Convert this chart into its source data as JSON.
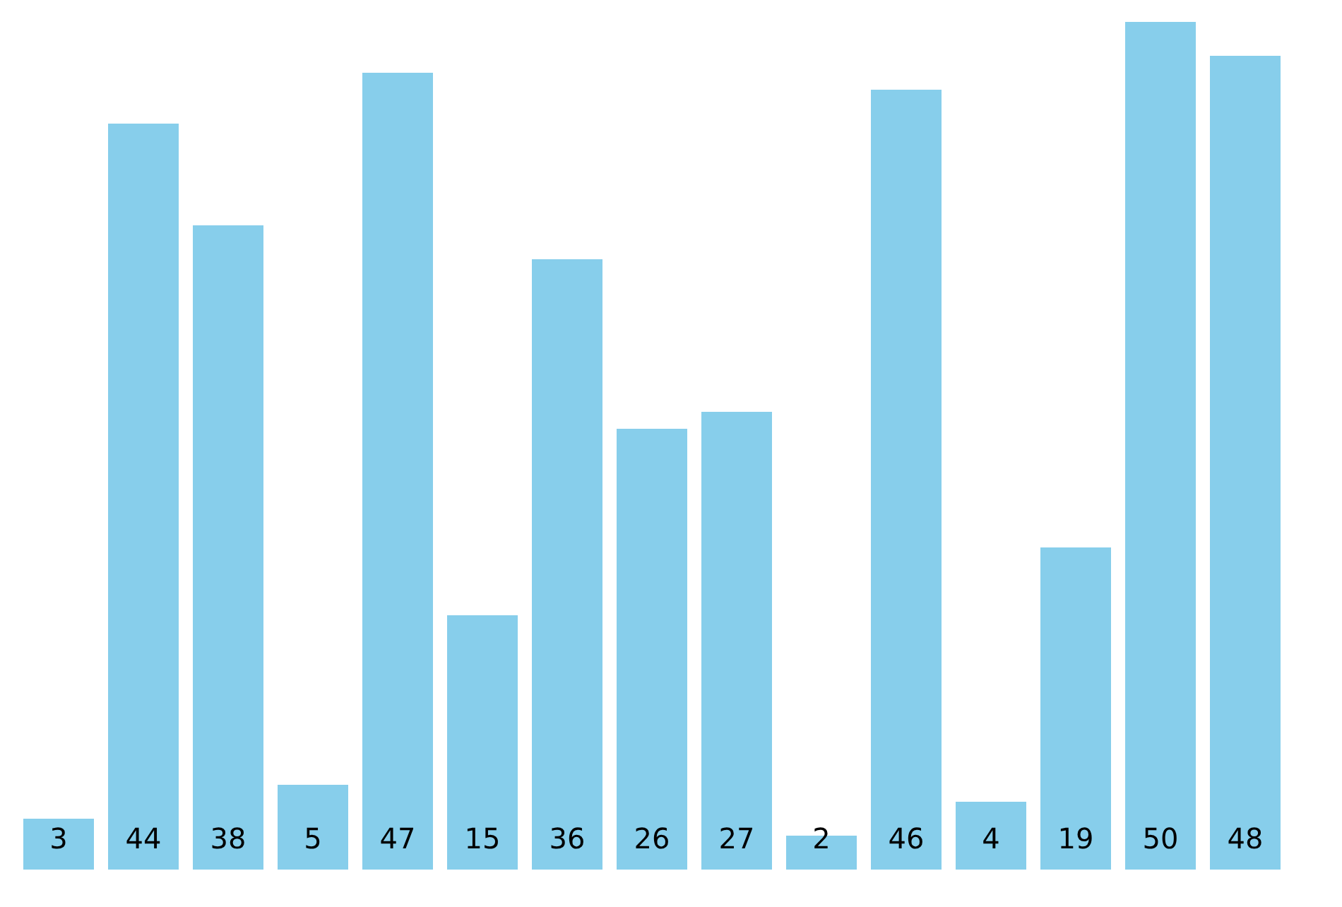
{
  "chart_data": {
    "type": "bar",
    "categories": [
      null,
      null,
      null,
      null,
      null,
      null,
      null,
      null,
      null,
      null,
      null,
      null,
      null,
      null,
      null
    ],
    "values": [
      3,
      44,
      38,
      5,
      47,
      15,
      36,
      26,
      27,
      2,
      46,
      4,
      19,
      50,
      48
    ],
    "color": "#87ceeb",
    "data_labels": true,
    "grid": false,
    "tick_labels": false
  }
}
